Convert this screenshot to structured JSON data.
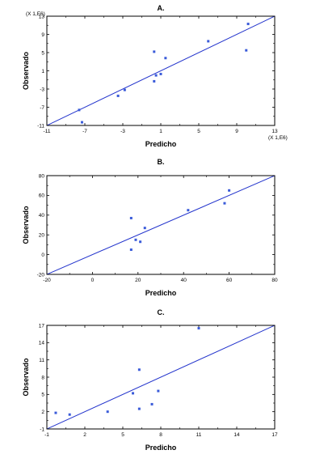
{
  "colors": {
    "points": "#3a5bd9",
    "fit_line": "#2233cc",
    "frame": "#000000"
  },
  "chart_data": [
    {
      "type": "scatter",
      "panel_label": "A.",
      "xlabel": "Predicho",
      "ylabel": "Observado",
      "x_multiplier": "(X 1,E6)",
      "y_multiplier": "(X 1,E6)",
      "xlim": [
        -11,
        13
      ],
      "ylim": [
        -11,
        13
      ],
      "xticks": [
        -11,
        -7,
        -3,
        1,
        5,
        9,
        13
      ],
      "xtick_labels": [
        "-11",
        "-7",
        "-3",
        "1",
        "5",
        "9",
        "13"
      ],
      "yticks": [
        -11,
        -7,
        -3,
        1,
        5,
        9,
        13
      ],
      "ytick_labels": [
        "-11",
        "-7",
        "-3",
        "1",
        "5",
        "9",
        "13"
      ],
      "grid": false,
      "points": [
        {
          "x": -7.6,
          "y": -7.6
        },
        {
          "x": -7.3,
          "y": -10.3
        },
        {
          "x": -3.5,
          "y": -4.5
        },
        {
          "x": -2.8,
          "y": -3.2
        },
        {
          "x": 0.3,
          "y": 5.2
        },
        {
          "x": 0.3,
          "y": -1.3
        },
        {
          "x": 0.5,
          "y": 0.0
        },
        {
          "x": 1.0,
          "y": 0.3
        },
        {
          "x": 1.5,
          "y": 3.8
        },
        {
          "x": 6.0,
          "y": 7.5
        },
        {
          "x": 10.0,
          "y": 5.5
        },
        {
          "x": 10.2,
          "y": 11.3
        }
      ],
      "fit_line": [
        [
          -11,
          -11
        ],
        [
          13,
          13
        ]
      ]
    },
    {
      "type": "scatter",
      "panel_label": "B.",
      "xlabel": "Predicho",
      "ylabel": "Observado",
      "xlim": [
        -20,
        80
      ],
      "ylim": [
        -20,
        80
      ],
      "xticks": [
        -20,
        0,
        20,
        40,
        60,
        80
      ],
      "xtick_labels": [
        "-20",
        "0",
        "20",
        "40",
        "60",
        "80"
      ],
      "yticks": [
        -20,
        0,
        20,
        40,
        60,
        80
      ],
      "ytick_labels": [
        "-20",
        "0",
        "20",
        "40",
        "60",
        "80"
      ],
      "grid": false,
      "points": [
        {
          "x": 17,
          "y": 37
        },
        {
          "x": 17,
          "y": 5
        },
        {
          "x": 19,
          "y": 15
        },
        {
          "x": 21,
          "y": 13
        },
        {
          "x": 23,
          "y": 27
        },
        {
          "x": 42,
          "y": 45
        },
        {
          "x": 58,
          "y": 52
        },
        {
          "x": 60,
          "y": 65
        }
      ],
      "fit_line": [
        [
          -20,
          -20
        ],
        [
          80,
          80
        ]
      ]
    },
    {
      "type": "scatter",
      "panel_label": "C.",
      "xlabel": "Predicho",
      "ylabel": "Observado",
      "xlim": [
        -1,
        17
      ],
      "ylim": [
        -1,
        17
      ],
      "xticks": [
        -1,
        2,
        5,
        8,
        11,
        14,
        17
      ],
      "xtick_labels": [
        "-1",
        "2",
        "5",
        "8",
        "11",
        "14",
        "17"
      ],
      "yticks": [
        -1,
        2,
        5,
        8,
        11,
        14,
        17
      ],
      "ytick_labels": [
        "-1",
        "2",
        "5",
        "8",
        "11",
        "14",
        "17"
      ],
      "grid": false,
      "points": [
        {
          "x": -0.3,
          "y": 1.8
        },
        {
          "x": 0.8,
          "y": 1.5
        },
        {
          "x": 3.8,
          "y": 2.0
        },
        {
          "x": 5.8,
          "y": 5.2
        },
        {
          "x": 6.3,
          "y": 2.5
        },
        {
          "x": 6.3,
          "y": 9.3
        },
        {
          "x": 7.3,
          "y": 3.3
        },
        {
          "x": 7.8,
          "y": 5.6
        },
        {
          "x": 11.0,
          "y": 16.5
        }
      ],
      "fit_line": [
        [
          -1,
          -1
        ],
        [
          17,
          17
        ]
      ]
    }
  ]
}
